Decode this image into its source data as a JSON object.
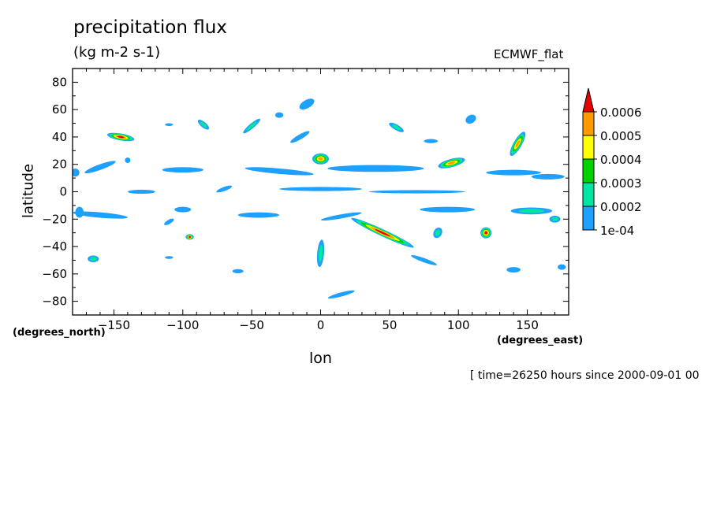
{
  "chart_data": {
    "type": "heatmap",
    "subtype": "filled-contour-map",
    "title": "precipitation flux",
    "units": "(kg m-2 s-1)",
    "source": "ECMWF_flat",
    "xlabel": "lon",
    "ylabel": "latitude",
    "x_unit_label": "(degrees_east)",
    "y_unit_label": "(degrees_north)",
    "time_label": "[ time=26250 hours since 2000-09-01 00",
    "xlim": [
      -180,
      180
    ],
    "ylim": [
      -90,
      90
    ],
    "x_ticks": [
      -150,
      -100,
      -50,
      0,
      50,
      100,
      150
    ],
    "x_tick_labels": [
      "−150",
      "−100",
      "−50",
      "0",
      "50",
      "100",
      "150"
    ],
    "y_ticks": [
      80,
      60,
      40,
      20,
      0,
      -20,
      -40,
      -60,
      -80
    ],
    "y_tick_labels": [
      "80",
      "60",
      "40",
      "20",
      "0",
      "−20",
      "−40",
      "−60",
      "−80"
    ],
    "levels": [
      0.0001,
      0.0002,
      0.0003,
      0.0004,
      0.0005,
      0.0006
    ],
    "level_labels": [
      "1e-04",
      "0.0002",
      "0.0003",
      "0.0004",
      "0.0005",
      "0.0006"
    ],
    "colors": [
      "#1ea0ff",
      "#00e6a0",
      "#00d200",
      "#ffff00",
      "#ff9b00",
      "#e60000"
    ],
    "features": [
      {
        "lon": -178,
        "lat": 14,
        "rx": 3,
        "ry": 3,
        "rot": 0,
        "max": 1
      },
      {
        "lon": -160,
        "lat": 18,
        "rx": 12,
        "ry": 2,
        "rot": -20,
        "max": 1
      },
      {
        "lon": -145,
        "lat": 40,
        "rx": 10,
        "ry": 2.5,
        "rot": 10,
        "max": 6
      },
      {
        "lon": -140,
        "lat": 23,
        "rx": 2,
        "ry": 2,
        "rot": 0,
        "max": 1
      },
      {
        "lon": -110,
        "lat": 49,
        "rx": 3,
        "ry": 1,
        "rot": 0,
        "max": 1
      },
      {
        "lon": -85,
        "lat": 49,
        "rx": 5,
        "ry": 2,
        "rot": 40,
        "max": 2
      },
      {
        "lon": -50,
        "lat": 48,
        "rx": 8,
        "ry": 1.8,
        "rot": -40,
        "max": 2
      },
      {
        "lon": -30,
        "lat": 56,
        "rx": 3,
        "ry": 2,
        "rot": 0,
        "max": 1
      },
      {
        "lon": -10,
        "lat": 64,
        "rx": 6,
        "ry": 3,
        "rot": -30,
        "max": 1
      },
      {
        "lon": -15,
        "lat": 40,
        "rx": 8,
        "ry": 1.8,
        "rot": -30,
        "max": 1
      },
      {
        "lon": 55,
        "lat": 47,
        "rx": 6,
        "ry": 2,
        "rot": 30,
        "max": 2
      },
      {
        "lon": 80,
        "lat": 37,
        "rx": 5,
        "ry": 1.5,
        "rot": 0,
        "max": 1
      },
      {
        "lon": 109,
        "lat": 53,
        "rx": 4,
        "ry": 3,
        "rot": -30,
        "max": 1
      },
      {
        "lon": 143,
        "lat": 35,
        "rx": 10,
        "ry": 3,
        "rot": -60,
        "max": 5
      },
      {
        "lon": 165,
        "lat": 11,
        "rx": 12,
        "ry": 2,
        "rot": 0,
        "max": 1
      },
      {
        "lon": 0,
        "lat": 24,
        "rx": 6,
        "ry": 4,
        "rot": 0,
        "max": 5
      },
      {
        "lon": 95,
        "lat": 21,
        "rx": 10,
        "ry": 3,
        "rot": -15,
        "max": 5
      },
      {
        "lon": 40,
        "lat": 17,
        "rx": 35,
        "ry": 2.5,
        "rot": 0,
        "max": 1
      },
      {
        "lon": -30,
        "lat": 15,
        "rx": 25,
        "ry": 2,
        "rot": 5,
        "max": 1
      },
      {
        "lon": -100,
        "lat": 16,
        "rx": 15,
        "ry": 2,
        "rot": 0,
        "max": 1
      },
      {
        "lon": 140,
        "lat": 14,
        "rx": 20,
        "ry": 2,
        "rot": 0,
        "max": 1
      },
      {
        "lon": -160,
        "lat": -17,
        "rx": 20,
        "ry": 2,
        "rot": 5,
        "max": 1
      },
      {
        "lon": -100,
        "lat": -13,
        "rx": 6,
        "ry": 2,
        "rot": 0,
        "max": 1
      },
      {
        "lon": -45,
        "lat": -17,
        "rx": 15,
        "ry": 2,
        "rot": 0,
        "max": 1
      },
      {
        "lon": 45,
        "lat": -30,
        "rx": 25,
        "ry": 2.5,
        "rot": 25,
        "max": 6
      },
      {
        "lon": 92,
        "lat": -13,
        "rx": 20,
        "ry": 2,
        "rot": 0,
        "max": 1
      },
      {
        "lon": 153,
        "lat": -14,
        "rx": 15,
        "ry": 2.5,
        "rot": 0,
        "max": 2
      },
      {
        "lon": -95,
        "lat": -33,
        "rx": 3,
        "ry": 2,
        "rot": 0,
        "max": 6
      },
      {
        "lon": 120,
        "lat": -30,
        "rx": 4,
        "ry": 4,
        "rot": -70,
        "max": 6
      },
      {
        "lon": 85,
        "lat": -30,
        "rx": 4,
        "ry": 3,
        "rot": -60,
        "max": 2
      },
      {
        "lon": -165,
        "lat": -49,
        "rx": 4,
        "ry": 2.5,
        "rot": 0,
        "max": 2
      },
      {
        "lon": 0,
        "lat": -45,
        "rx": 10,
        "ry": 2.5,
        "rot": -85,
        "max": 2
      },
      {
        "lon": 75,
        "lat": -50,
        "rx": 10,
        "ry": 1.5,
        "rot": 20,
        "max": 1
      },
      {
        "lon": 140,
        "lat": -57,
        "rx": 5,
        "ry": 2,
        "rot": 0,
        "max": 1
      },
      {
        "lon": 175,
        "lat": -55,
        "rx": 3,
        "ry": 2,
        "rot": 0,
        "max": 1
      },
      {
        "lon": 15,
        "lat": -75,
        "rx": 10,
        "ry": 1.5,
        "rot": -15,
        "max": 1
      },
      {
        "lon": -60,
        "lat": -58,
        "rx": 4,
        "ry": 1.5,
        "rot": 0,
        "max": 1
      },
      {
        "lon": -110,
        "lat": -48,
        "rx": 3,
        "ry": 1,
        "rot": 0,
        "max": 1
      },
      {
        "lon": -110,
        "lat": -22,
        "rx": 4,
        "ry": 1.5,
        "rot": -30,
        "max": 1
      },
      {
        "lon": -70,
        "lat": 2,
        "rx": 6,
        "ry": 1.5,
        "rot": -20,
        "max": 1
      },
      {
        "lon": 170,
        "lat": -20,
        "rx": 4,
        "ry": 2.5,
        "rot": 0,
        "max": 2
      },
      {
        "lon": -175,
        "lat": -15,
        "rx": 3,
        "ry": 4,
        "rot": 0,
        "max": 1
      },
      {
        "lon": 0,
        "lat": 2,
        "rx": 30,
        "ry": 1.5,
        "rot": 0,
        "max": 1
      },
      {
        "lon": 70,
        "lat": 0,
        "rx": 35,
        "ry": 1.2,
        "rot": 0,
        "max": 1
      },
      {
        "lon": -130,
        "lat": 0,
        "rx": 10,
        "ry": 1.5,
        "rot": 0,
        "max": 1
      },
      {
        "lon": 15,
        "lat": -18,
        "rx": 15,
        "ry": 1.5,
        "rot": -10,
        "max": 1
      }
    ]
  }
}
